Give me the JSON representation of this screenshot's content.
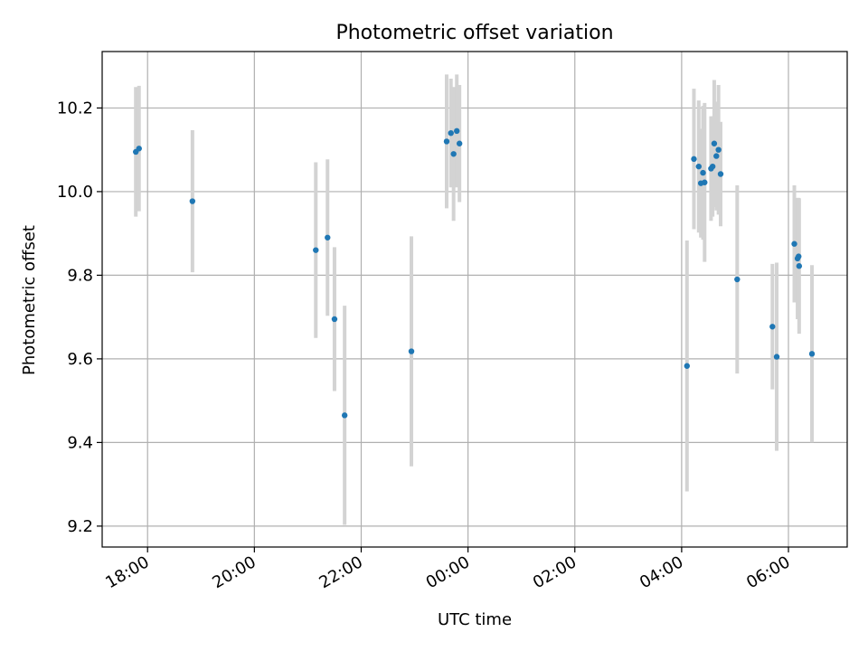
{
  "chart_data": {
    "type": "scatter",
    "title": "Photometric offset variation",
    "xlabel": "UTC time",
    "ylabel": "Photometric offset",
    "x_unit": "hours (UTC, continuing past midnight)",
    "xlim": [
      17.15,
      31.1
    ],
    "ylim": [
      9.15,
      10.335
    ],
    "x_ticks": [
      {
        "value": 18,
        "label": "18:00"
      },
      {
        "value": 20,
        "label": "20:00"
      },
      {
        "value": 22,
        "label": "22:00"
      },
      {
        "value": 24,
        "label": "00:00"
      },
      {
        "value": 26,
        "label": "02:00"
      },
      {
        "value": 28,
        "label": "04:00"
      },
      {
        "value": 30,
        "label": "06:00"
      }
    ],
    "y_ticks": [
      {
        "value": 9.2,
        "label": "9.2"
      },
      {
        "value": 9.4,
        "label": "9.4"
      },
      {
        "value": 9.6,
        "label": "9.6"
      },
      {
        "value": 9.8,
        "label": "9.8"
      },
      {
        "value": 10.0,
        "label": "10.0"
      },
      {
        "value": 10.2,
        "label": "10.2"
      }
    ],
    "grid": true,
    "colors": {
      "marker": "#1f77b4",
      "errorbar": "#d3d3d3",
      "grid": "#b0b0b0"
    },
    "points": [
      {
        "x": 17.78,
        "y": 10.095,
        "err": 0.155
      },
      {
        "x": 17.84,
        "y": 10.103,
        "err": 0.15
      },
      {
        "x": 18.84,
        "y": 9.977,
        "err": 0.17
      },
      {
        "x": 21.15,
        "y": 9.86,
        "err": 0.21
      },
      {
        "x": 21.37,
        "y": 9.89,
        "err": 0.187
      },
      {
        "x": 21.5,
        "y": 9.695,
        "err": 0.172
      },
      {
        "x": 21.69,
        "y": 9.465,
        "err": 0.262
      },
      {
        "x": 22.94,
        "y": 9.618,
        "err": 0.275
      },
      {
        "x": 23.6,
        "y": 10.12,
        "err": 0.16
      },
      {
        "x": 23.68,
        "y": 10.14,
        "err": 0.13
      },
      {
        "x": 23.73,
        "y": 10.09,
        "err": 0.16
      },
      {
        "x": 23.79,
        "y": 10.145,
        "err": 0.135
      },
      {
        "x": 23.84,
        "y": 10.115,
        "err": 0.14
      },
      {
        "x": 28.1,
        "y": 9.583,
        "err": 0.3
      },
      {
        "x": 28.23,
        "y": 10.078,
        "err": 0.168
      },
      {
        "x": 28.32,
        "y": 10.06,
        "err": 0.158
      },
      {
        "x": 28.36,
        "y": 10.02,
        "err": 0.13
      },
      {
        "x": 28.4,
        "y": 10.045,
        "err": 0.16
      },
      {
        "x": 28.43,
        "y": 10.022,
        "err": 0.19
      },
      {
        "x": 28.55,
        "y": 10.055,
        "err": 0.125
      },
      {
        "x": 28.58,
        "y": 10.06,
        "err": 0.12
      },
      {
        "x": 28.61,
        "y": 10.115,
        "err": 0.152
      },
      {
        "x": 28.65,
        "y": 10.085,
        "err": 0.13
      },
      {
        "x": 28.69,
        "y": 10.1,
        "err": 0.155
      },
      {
        "x": 28.73,
        "y": 10.042,
        "err": 0.125
      },
      {
        "x": 29.04,
        "y": 9.79,
        "err": 0.225
      },
      {
        "x": 29.7,
        "y": 9.677,
        "err": 0.15
      },
      {
        "x": 29.78,
        "y": 9.605,
        "err": 0.225
      },
      {
        "x": 30.11,
        "y": 9.875,
        "err": 0.14
      },
      {
        "x": 30.17,
        "y": 9.84,
        "err": 0.145
      },
      {
        "x": 30.19,
        "y": 9.845,
        "err": 0.14
      },
      {
        "x": 30.2,
        "y": 9.822,
        "err": 0.162
      },
      {
        "x": 30.44,
        "y": 9.612,
        "err": 0.212
      }
    ]
  }
}
